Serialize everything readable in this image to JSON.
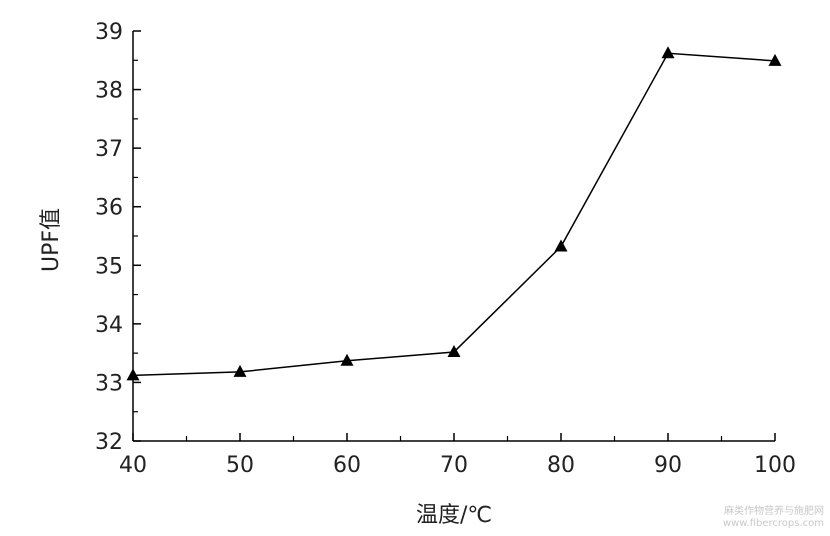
{
  "chart_data": {
    "type": "line",
    "xlabel": "温度/℃",
    "ylabel": "UPF值",
    "x": [
      40,
      50,
      60,
      70,
      80,
      90,
      100
    ],
    "series": [
      {
        "values": [
          33.12,
          33.18,
          33.37,
          33.52,
          35.32,
          38.62,
          38.49
        ],
        "marker": "triangle",
        "color": "#000000"
      }
    ],
    "xlim": [
      40,
      100
    ],
    "ylim": [
      32,
      39
    ],
    "xticks": [
      "40",
      "50",
      "60",
      "70",
      "80",
      "90",
      "100"
    ],
    "yticks": [
      "32",
      "33",
      "34",
      "35",
      "36",
      "37",
      "38",
      "39"
    ],
    "grid": false
  },
  "watermark": {
    "line1": "麻类作物营养与施肥网",
    "line2": "www.fibercrops.com"
  }
}
